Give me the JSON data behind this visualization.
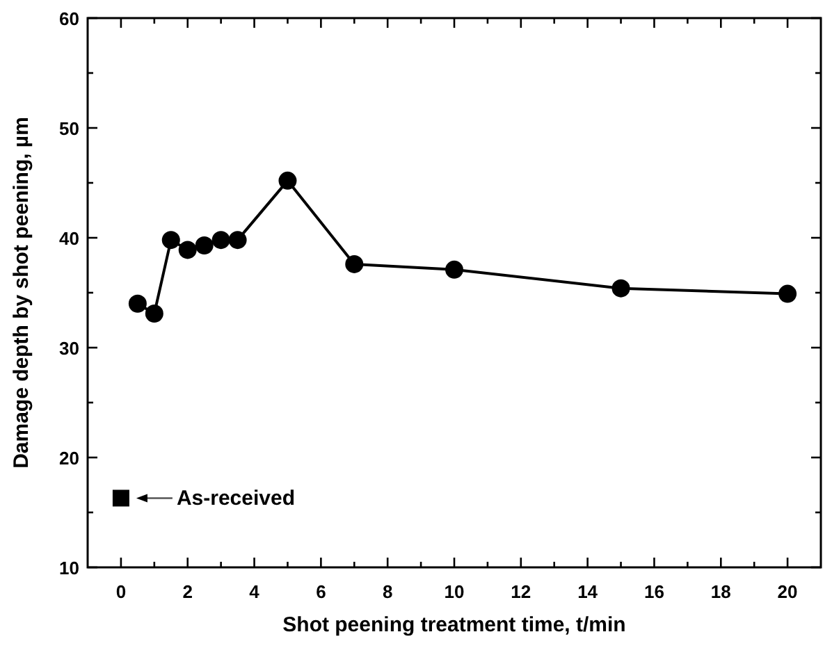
{
  "chart_data": {
    "type": "line",
    "xlabel": "Shot peening treatment time, t/min",
    "ylabel": "Damage depth by shot peening, µm",
    "xlim": [
      -1,
      21
    ],
    "ylim": [
      10,
      60
    ],
    "xticks": [
      0,
      {
        "value": 1,
        "label": null
      },
      2,
      {
        "value": 3,
        "label": null
      },
      4,
      {
        "value": 5,
        "label": null
      },
      6,
      {
        "value": 7,
        "label": null
      },
      8,
      {
        "value": 9,
        "label": null
      },
      10,
      {
        "value": 11,
        "label": null
      },
      12,
      {
        "value": 13,
        "label": null
      },
      14,
      {
        "value": 15,
        "label": null
      },
      16,
      {
        "value": 17,
        "label": null
      },
      18,
      {
        "value": 19,
        "label": null
      },
      20
    ],
    "yticks": [
      10,
      {
        "value": 15,
        "label": null
      },
      20,
      {
        "value": 25,
        "label": null
      },
      30,
      {
        "value": 35,
        "label": null
      },
      40,
      {
        "value": 45,
        "label": null
      },
      50,
      {
        "value": 55,
        "label": null
      },
      60
    ],
    "grid": false,
    "series": [
      {
        "color": "#000000",
        "marker": "circle",
        "line_style": "solid",
        "x": [
          0.5,
          1,
          1.5,
          2,
          2.5,
          3,
          3.5,
          5,
          7,
          10,
          15,
          20
        ],
        "values": [
          34.0,
          33.1,
          39.8,
          38.9,
          39.3,
          39.8,
          39.8,
          45.2,
          37.6,
          37.1,
          35.4,
          34.9
        ]
      },
      {
        "type": "scatter",
        "color": "#000000",
        "marker": "square",
        "x": [
          0
        ],
        "values": [
          16.3
        ]
      }
    ],
    "annotations": [
      {
        "text": "As-received",
        "x": 0,
        "y": 16.3
      }
    ]
  }
}
